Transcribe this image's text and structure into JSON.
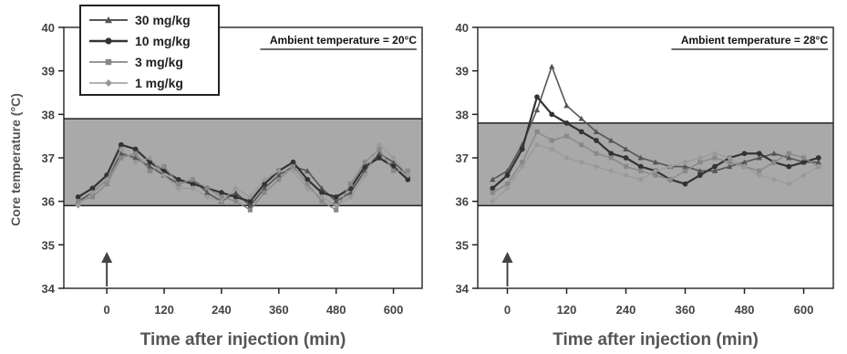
{
  "figure": {
    "ylabel": "Core temperature (°C)",
    "xlabel": "Time after injection (min)",
    "legend": {
      "placement": "top-left of left panel",
      "items": [
        {
          "label": "30 mg/kg",
          "marker": "triangle"
        },
        {
          "label": "10 mg/kg",
          "marker": "circle"
        },
        {
          "label": "3 mg/kg",
          "marker": "square"
        },
        {
          "label": "1 mg/kg",
          "marker": "diamond"
        }
      ]
    }
  },
  "chart_data": [
    {
      "type": "line",
      "title": "Ambient temperature = 20°C",
      "xlabel": "Time after injection (min)",
      "ylabel": "Core temperature (°C)",
      "xlim": [
        -90,
        660
      ],
      "ylim": [
        34,
        40
      ],
      "xticks": [
        "0",
        "120",
        "240",
        "360",
        "480",
        "600"
      ],
      "yticks": [
        "34",
        "35",
        "36",
        "37",
        "38",
        "39",
        "40"
      ],
      "shaded_band": [
        35.9,
        37.9
      ],
      "injection_arrow_x": 0,
      "x": [
        -60,
        -30,
        0,
        30,
        60,
        90,
        120,
        150,
        180,
        210,
        240,
        270,
        300,
        330,
        360,
        390,
        420,
        450,
        480,
        510,
        540,
        570,
        600,
        630
      ],
      "series": [
        {
          "name": "30 mg/kg",
          "values": [
            36.0,
            36.2,
            36.5,
            37.1,
            37.0,
            36.8,
            36.6,
            36.4,
            36.5,
            36.2,
            36.0,
            36.2,
            35.9,
            36.3,
            36.6,
            36.8,
            36.7,
            36.3,
            36.0,
            36.2,
            36.7,
            37.1,
            36.9,
            36.6
          ]
        },
        {
          "name": "10 mg/kg",
          "values": [
            36.1,
            36.3,
            36.6,
            37.3,
            37.2,
            36.9,
            36.7,
            36.5,
            36.4,
            36.3,
            36.2,
            36.1,
            36.0,
            36.4,
            36.7,
            36.9,
            36.5,
            36.2,
            36.1,
            36.3,
            36.8,
            37.0,
            36.8,
            36.5
          ]
        },
        {
          "name": "3 mg/kg",
          "values": [
            36.0,
            36.1,
            36.4,
            37.0,
            37.1,
            36.7,
            36.8,
            36.4,
            36.5,
            36.3,
            36.1,
            36.0,
            35.8,
            36.2,
            36.5,
            36.8,
            36.4,
            36.0,
            35.8,
            36.4,
            36.9,
            37.2,
            36.7,
            36.7
          ]
        },
        {
          "name": "1 mg/kg",
          "values": [
            35.9,
            36.2,
            36.5,
            37.2,
            36.9,
            37.0,
            36.6,
            36.3,
            36.3,
            36.1,
            36.0,
            36.3,
            36.1,
            36.5,
            36.7,
            36.7,
            36.3,
            36.1,
            35.9,
            36.1,
            36.6,
            37.3,
            37.0,
            36.6
          ]
        }
      ]
    },
    {
      "type": "line",
      "title": "Ambient temperature = 28°C",
      "xlabel": "Time after injection (min)",
      "ylabel": "Core temperature (°C)",
      "xlim": [
        -60,
        660
      ],
      "ylim": [
        34,
        40
      ],
      "xticks": [
        "0",
        "120",
        "240",
        "360",
        "480",
        "600"
      ],
      "yticks": [
        "34",
        "35",
        "36",
        "37",
        "38",
        "39",
        "40"
      ],
      "shaded_band": [
        35.9,
        37.8
      ],
      "injection_arrow_x": 0,
      "x": [
        -30,
        0,
        30,
        60,
        90,
        120,
        150,
        180,
        210,
        240,
        270,
        300,
        330,
        360,
        390,
        420,
        450,
        480,
        510,
        540,
        570,
        600,
        630
      ],
      "series": [
        {
          "name": "30 mg/kg",
          "values": [
            36.5,
            36.7,
            37.3,
            38.1,
            39.1,
            38.2,
            37.9,
            37.6,
            37.4,
            37.2,
            37.0,
            36.9,
            36.8,
            36.8,
            36.7,
            36.7,
            36.8,
            36.9,
            37.0,
            37.1,
            37.0,
            36.9,
            36.9
          ]
        },
        {
          "name": "10 mg/kg",
          "values": [
            36.3,
            36.6,
            37.2,
            38.4,
            38.0,
            37.8,
            37.6,
            37.4,
            37.1,
            37.0,
            36.8,
            36.7,
            36.5,
            36.4,
            36.6,
            36.8,
            37.0,
            37.1,
            37.1,
            36.9,
            36.8,
            36.9,
            37.0
          ]
        },
        {
          "name": "3 mg/kg",
          "values": [
            36.2,
            36.4,
            36.9,
            37.6,
            37.4,
            37.5,
            37.3,
            37.1,
            37.0,
            36.8,
            36.7,
            36.6,
            36.5,
            36.7,
            36.9,
            37.0,
            36.9,
            36.8,
            36.7,
            36.9,
            37.1,
            37.0,
            36.8
          ]
        },
        {
          "name": "1 mg/kg",
          "values": [
            36.0,
            36.3,
            36.8,
            37.3,
            37.2,
            37.0,
            36.9,
            36.8,
            36.7,
            36.6,
            36.5,
            36.7,
            36.8,
            36.9,
            37.0,
            37.1,
            37.0,
            36.8,
            36.6,
            36.5,
            36.4,
            36.6,
            36.8
          ]
        }
      ]
    }
  ]
}
